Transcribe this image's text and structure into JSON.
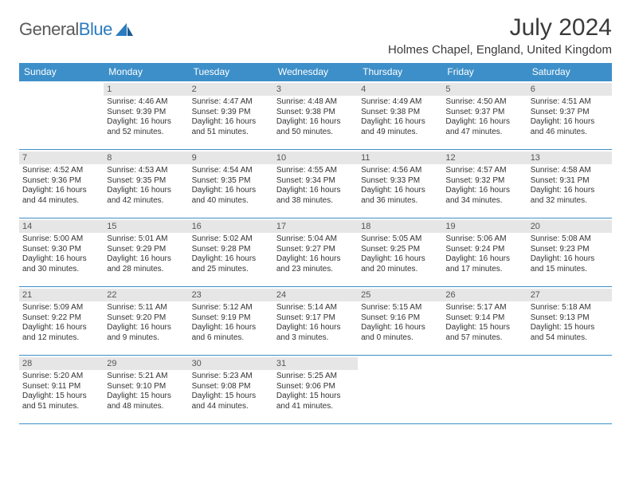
{
  "brand": {
    "part1": "General",
    "part2": "Blue"
  },
  "title": "July 2024",
  "location": "Holmes Chapel, England, United Kingdom",
  "colors": {
    "header_bg": "#3d8fc9",
    "header_text": "#ffffff",
    "daynum_bg": "#e6e6e6",
    "border": "#3d8fc9",
    "body_text": "#333333",
    "brand_gray": "#5a5a5a",
    "brand_blue": "#2b7bbf"
  },
  "day_headers": [
    "Sunday",
    "Monday",
    "Tuesday",
    "Wednesday",
    "Thursday",
    "Friday",
    "Saturday"
  ],
  "weeks": [
    [
      {
        "n": "",
        "sr": "",
        "ss": "",
        "dl": ""
      },
      {
        "n": "1",
        "sr": "Sunrise: 4:46 AM",
        "ss": "Sunset: 9:39 PM",
        "dl": "Daylight: 16 hours and 52 minutes."
      },
      {
        "n": "2",
        "sr": "Sunrise: 4:47 AM",
        "ss": "Sunset: 9:39 PM",
        "dl": "Daylight: 16 hours and 51 minutes."
      },
      {
        "n": "3",
        "sr": "Sunrise: 4:48 AM",
        "ss": "Sunset: 9:38 PM",
        "dl": "Daylight: 16 hours and 50 minutes."
      },
      {
        "n": "4",
        "sr": "Sunrise: 4:49 AM",
        "ss": "Sunset: 9:38 PM",
        "dl": "Daylight: 16 hours and 49 minutes."
      },
      {
        "n": "5",
        "sr": "Sunrise: 4:50 AM",
        "ss": "Sunset: 9:37 PM",
        "dl": "Daylight: 16 hours and 47 minutes."
      },
      {
        "n": "6",
        "sr": "Sunrise: 4:51 AM",
        "ss": "Sunset: 9:37 PM",
        "dl": "Daylight: 16 hours and 46 minutes."
      }
    ],
    [
      {
        "n": "7",
        "sr": "Sunrise: 4:52 AM",
        "ss": "Sunset: 9:36 PM",
        "dl": "Daylight: 16 hours and 44 minutes."
      },
      {
        "n": "8",
        "sr": "Sunrise: 4:53 AM",
        "ss": "Sunset: 9:35 PM",
        "dl": "Daylight: 16 hours and 42 minutes."
      },
      {
        "n": "9",
        "sr": "Sunrise: 4:54 AM",
        "ss": "Sunset: 9:35 PM",
        "dl": "Daylight: 16 hours and 40 minutes."
      },
      {
        "n": "10",
        "sr": "Sunrise: 4:55 AM",
        "ss": "Sunset: 9:34 PM",
        "dl": "Daylight: 16 hours and 38 minutes."
      },
      {
        "n": "11",
        "sr": "Sunrise: 4:56 AM",
        "ss": "Sunset: 9:33 PM",
        "dl": "Daylight: 16 hours and 36 minutes."
      },
      {
        "n": "12",
        "sr": "Sunrise: 4:57 AM",
        "ss": "Sunset: 9:32 PM",
        "dl": "Daylight: 16 hours and 34 minutes."
      },
      {
        "n": "13",
        "sr": "Sunrise: 4:58 AM",
        "ss": "Sunset: 9:31 PM",
        "dl": "Daylight: 16 hours and 32 minutes."
      }
    ],
    [
      {
        "n": "14",
        "sr": "Sunrise: 5:00 AM",
        "ss": "Sunset: 9:30 PM",
        "dl": "Daylight: 16 hours and 30 minutes."
      },
      {
        "n": "15",
        "sr": "Sunrise: 5:01 AM",
        "ss": "Sunset: 9:29 PM",
        "dl": "Daylight: 16 hours and 28 minutes."
      },
      {
        "n": "16",
        "sr": "Sunrise: 5:02 AM",
        "ss": "Sunset: 9:28 PM",
        "dl": "Daylight: 16 hours and 25 minutes."
      },
      {
        "n": "17",
        "sr": "Sunrise: 5:04 AM",
        "ss": "Sunset: 9:27 PM",
        "dl": "Daylight: 16 hours and 23 minutes."
      },
      {
        "n": "18",
        "sr": "Sunrise: 5:05 AM",
        "ss": "Sunset: 9:25 PM",
        "dl": "Daylight: 16 hours and 20 minutes."
      },
      {
        "n": "19",
        "sr": "Sunrise: 5:06 AM",
        "ss": "Sunset: 9:24 PM",
        "dl": "Daylight: 16 hours and 17 minutes."
      },
      {
        "n": "20",
        "sr": "Sunrise: 5:08 AM",
        "ss": "Sunset: 9:23 PM",
        "dl": "Daylight: 16 hours and 15 minutes."
      }
    ],
    [
      {
        "n": "21",
        "sr": "Sunrise: 5:09 AM",
        "ss": "Sunset: 9:22 PM",
        "dl": "Daylight: 16 hours and 12 minutes."
      },
      {
        "n": "22",
        "sr": "Sunrise: 5:11 AM",
        "ss": "Sunset: 9:20 PM",
        "dl": "Daylight: 16 hours and 9 minutes."
      },
      {
        "n": "23",
        "sr": "Sunrise: 5:12 AM",
        "ss": "Sunset: 9:19 PM",
        "dl": "Daylight: 16 hours and 6 minutes."
      },
      {
        "n": "24",
        "sr": "Sunrise: 5:14 AM",
        "ss": "Sunset: 9:17 PM",
        "dl": "Daylight: 16 hours and 3 minutes."
      },
      {
        "n": "25",
        "sr": "Sunrise: 5:15 AM",
        "ss": "Sunset: 9:16 PM",
        "dl": "Daylight: 16 hours and 0 minutes."
      },
      {
        "n": "26",
        "sr": "Sunrise: 5:17 AM",
        "ss": "Sunset: 9:14 PM",
        "dl": "Daylight: 15 hours and 57 minutes."
      },
      {
        "n": "27",
        "sr": "Sunrise: 5:18 AM",
        "ss": "Sunset: 9:13 PM",
        "dl": "Daylight: 15 hours and 54 minutes."
      }
    ],
    [
      {
        "n": "28",
        "sr": "Sunrise: 5:20 AM",
        "ss": "Sunset: 9:11 PM",
        "dl": "Daylight: 15 hours and 51 minutes."
      },
      {
        "n": "29",
        "sr": "Sunrise: 5:21 AM",
        "ss": "Sunset: 9:10 PM",
        "dl": "Daylight: 15 hours and 48 minutes."
      },
      {
        "n": "30",
        "sr": "Sunrise: 5:23 AM",
        "ss": "Sunset: 9:08 PM",
        "dl": "Daylight: 15 hours and 44 minutes."
      },
      {
        "n": "31",
        "sr": "Sunrise: 5:25 AM",
        "ss": "Sunset: 9:06 PM",
        "dl": "Daylight: 15 hours and 41 minutes."
      },
      {
        "n": "",
        "sr": "",
        "ss": "",
        "dl": ""
      },
      {
        "n": "",
        "sr": "",
        "ss": "",
        "dl": ""
      },
      {
        "n": "",
        "sr": "",
        "ss": "",
        "dl": ""
      }
    ]
  ]
}
